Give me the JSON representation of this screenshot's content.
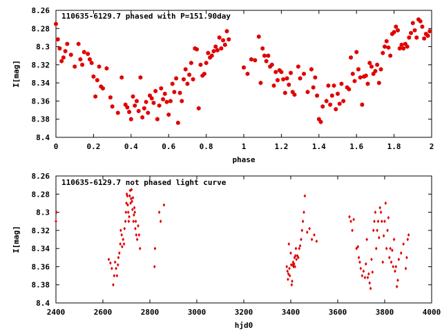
{
  "chart_data": [
    {
      "type": "scatter",
      "title": "110635-6129.7 phased with P=151.90day",
      "xlabel": "phase",
      "ylabel": "I[mag]",
      "xlim": [
        0,
        2
      ],
      "ylim": [
        8.4,
        8.26
      ],
      "y_inverted": true,
      "xticks": [
        0,
        0.2,
        0.4,
        0.6,
        0.8,
        1,
        1.2,
        1.4,
        1.6,
        1.8,
        2
      ],
      "xtick_labels": [
        "0",
        "0.2",
        "0.4",
        "0.6",
        "0.8",
        "1",
        "1.2",
        "1.4",
        "1.6",
        "1.8",
        "2"
      ],
      "yticks": [
        8.26,
        8.28,
        8.3,
        8.32,
        8.34,
        8.36,
        8.38,
        8.4
      ],
      "ytick_labels": [
        "8.26",
        "8.28",
        "8.3",
        "8.32",
        "8.34",
        "8.36",
        "8.38",
        "8.4"
      ],
      "grid": false,
      "marker": "filled-hexagon",
      "color": "#e00000",
      "points": [
        [
          0.0,
          8.275
        ],
        [
          0.01,
          8.292
        ],
        [
          0.02,
          8.302
        ],
        [
          0.03,
          8.316
        ],
        [
          0.04,
          8.312
        ],
        [
          0.05,
          8.305
        ],
        [
          0.06,
          8.297
        ],
        [
          0.08,
          8.309
        ],
        [
          0.1,
          8.322
        ],
        [
          0.12,
          8.297
        ],
        [
          0.13,
          8.314
        ],
        [
          0.14,
          8.32
        ],
        [
          0.15,
          8.306
        ],
        [
          0.17,
          8.308
        ],
        [
          0.18,
          8.314
        ],
        [
          0.19,
          8.318
        ],
        [
          0.2,
          8.333
        ],
        [
          0.21,
          8.355
        ],
        [
          0.22,
          8.337
        ],
        [
          0.23,
          8.322
        ],
        [
          0.24,
          8.344
        ],
        [
          0.25,
          8.346
        ],
        [
          0.27,
          8.324
        ],
        [
          0.29,
          8.356
        ],
        [
          0.3,
          8.366
        ],
        [
          0.33,
          8.373
        ],
        [
          0.35,
          8.334
        ],
        [
          0.37,
          8.364
        ],
        [
          0.38,
          8.367
        ],
        [
          0.39,
          8.372
        ],
        [
          0.4,
          8.38
        ],
        [
          0.41,
          8.355
        ],
        [
          0.42,
          8.365
        ],
        [
          0.43,
          8.36
        ],
        [
          0.44,
          8.371
        ],
        [
          0.45,
          8.334
        ],
        [
          0.46,
          8.378
        ],
        [
          0.47,
          8.368
        ],
        [
          0.48,
          8.361
        ],
        [
          0.49,
          8.373
        ],
        [
          0.5,
          8.354
        ],
        [
          0.51,
          8.357
        ],
        [
          0.52,
          8.362
        ],
        [
          0.53,
          8.349
        ],
        [
          0.54,
          8.38
        ],
        [
          0.55,
          8.365
        ],
        [
          0.56,
          8.346
        ],
        [
          0.57,
          8.358
        ],
        [
          0.58,
          8.352
        ],
        [
          0.59,
          8.361
        ],
        [
          0.6,
          8.375
        ],
        [
          0.61,
          8.36
        ],
        [
          0.62,
          8.341
        ],
        [
          0.63,
          8.35
        ],
        [
          0.64,
          8.335
        ],
        [
          0.65,
          8.384
        ],
        [
          0.66,
          8.351
        ],
        [
          0.67,
          8.36
        ],
        [
          0.68,
          8.336
        ],
        [
          0.69,
          8.325
        ],
        [
          0.7,
          8.341
        ],
        [
          0.71,
          8.331
        ],
        [
          0.72,
          8.318
        ],
        [
          0.73,
          8.336
        ],
        [
          0.74,
          8.302
        ],
        [
          0.75,
          8.303
        ],
        [
          0.76,
          8.368
        ],
        [
          0.77,
          8.32
        ],
        [
          0.78,
          8.332
        ],
        [
          0.79,
          8.33
        ],
        [
          0.8,
          8.318
        ],
        [
          0.81,
          8.307
        ],
        [
          0.82,
          8.312
        ],
        [
          0.83,
          8.31
        ],
        [
          0.84,
          8.305
        ],
        [
          0.85,
          8.3
        ],
        [
          0.86,
          8.304
        ],
        [
          0.87,
          8.29
        ],
        [
          0.88,
          8.302
        ],
        [
          0.89,
          8.293
        ],
        [
          0.9,
          8.298
        ],
        [
          0.91,
          8.283
        ],
        [
          0.92,
          8.292
        ],
        [
          1.0,
          8.323
        ],
        [
          1.02,
          8.33
        ],
        [
          1.04,
          8.314
        ],
        [
          1.06,
          8.315
        ],
        [
          1.08,
          8.289
        ],
        [
          1.09,
          8.34
        ],
        [
          1.1,
          8.302
        ],
        [
          1.11,
          8.31
        ],
        [
          1.12,
          8.316
        ],
        [
          1.13,
          8.31
        ],
        [
          1.14,
          8.322
        ],
        [
          1.15,
          8.32
        ],
        [
          1.16,
          8.343
        ],
        [
          1.17,
          8.328
        ],
        [
          1.18,
          8.337
        ],
        [
          1.19,
          8.326
        ],
        [
          1.2,
          8.328
        ],
        [
          1.21,
          8.336
        ],
        [
          1.22,
          8.351
        ],
        [
          1.23,
          8.335
        ],
        [
          1.24,
          8.342
        ],
        [
          1.25,
          8.329
        ],
        [
          1.26,
          8.35
        ],
        [
          1.27,
          8.353
        ],
        [
          1.29,
          8.322
        ],
        [
          1.3,
          8.335
        ],
        [
          1.32,
          8.33
        ],
        [
          1.34,
          8.35
        ],
        [
          1.36,
          8.325
        ],
        [
          1.37,
          8.345
        ],
        [
          1.38,
          8.334
        ],
        [
          1.39,
          8.354
        ],
        [
          1.4,
          8.38
        ],
        [
          1.41,
          8.383
        ],
        [
          1.42,
          8.366
        ],
        [
          1.44,
          8.36
        ],
        [
          1.45,
          8.343
        ],
        [
          1.46,
          8.364
        ],
        [
          1.47,
          8.354
        ],
        [
          1.48,
          8.343
        ],
        [
          1.49,
          8.369
        ],
        [
          1.5,
          8.352
        ],
        [
          1.51,
          8.363
        ],
        [
          1.52,
          8.341
        ],
        [
          1.53,
          8.36
        ],
        [
          1.55,
          8.345
        ],
        [
          1.56,
          8.347
        ],
        [
          1.57,
          8.312
        ],
        [
          1.58,
          8.33
        ],
        [
          1.59,
          8.338
        ],
        [
          1.6,
          8.306
        ],
        [
          1.61,
          8.325
        ],
        [
          1.62,
          8.334
        ],
        [
          1.63,
          8.364
        ],
        [
          1.64,
          8.333
        ],
        [
          1.65,
          8.332
        ],
        [
          1.66,
          8.341
        ],
        [
          1.67,
          8.318
        ],
        [
          1.68,
          8.322
        ],
        [
          1.69,
          8.33
        ],
        [
          1.7,
          8.327
        ],
        [
          1.71,
          8.32
        ],
        [
          1.72,
          8.34
        ],
        [
          1.73,
          8.325
        ],
        [
          1.74,
          8.307
        ],
        [
          1.75,
          8.3
        ],
        [
          1.76,
          8.294
        ],
        [
          1.77,
          8.301
        ],
        [
          1.78,
          8.31
        ],
        [
          1.79,
          8.286
        ],
        [
          1.8,
          8.284
        ],
        [
          1.81,
          8.278
        ],
        [
          1.82,
          8.282
        ],
        [
          1.83,
          8.302
        ],
        [
          1.84,
          8.298
        ],
        [
          1.85,
          8.302
        ],
        [
          1.86,
          8.297
        ],
        [
          1.87,
          8.3
        ],
        [
          1.88,
          8.29
        ],
        [
          1.89,
          8.285
        ],
        [
          1.9,
          8.274
        ],
        [
          1.91,
          8.282
        ],
        [
          1.92,
          8.29
        ],
        [
          1.93,
          8.27
        ],
        [
          1.94,
          8.272
        ],
        [
          1.95,
          8.278
        ],
        [
          1.96,
          8.291
        ],
        [
          1.97,
          8.286
        ],
        [
          1.98,
          8.288
        ],
        [
          1.99,
          8.283
        ]
      ]
    },
    {
      "type": "scatter",
      "title": "110635-6129.7 not phased light curve",
      "xlabel": "hjd0",
      "ylabel": "I[mag]",
      "xlim": [
        2400,
        4000
      ],
      "ylim": [
        8.4,
        8.26
      ],
      "y_inverted": true,
      "xticks": [
        2400,
        2600,
        2800,
        3000,
        3200,
        3400,
        3600,
        3800,
        4000
      ],
      "xtick_labels": [
        "2400",
        "2600",
        "2800",
        "3000",
        "3200",
        "3400",
        "3600",
        "3800",
        "4000"
      ],
      "yticks": [
        8.26,
        8.28,
        8.3,
        8.32,
        8.34,
        8.36,
        8.38,
        8.4
      ],
      "ytick_labels": [
        "8.26",
        "8.28",
        "8.3",
        "8.32",
        "8.34",
        "8.36",
        "8.38",
        "8.4"
      ],
      "grid": false,
      "marker": "filled-diamond",
      "color": "#e00000",
      "points": [
        [
          2400,
          8.31
        ],
        [
          2402,
          8.3
        ],
        [
          2625,
          8.352
        ],
        [
          2632,
          8.356
        ],
        [
          2638,
          8.362
        ],
        [
          2644,
          8.38
        ],
        [
          2648,
          8.37
        ],
        [
          2652,
          8.355
        ],
        [
          2656,
          8.362
        ],
        [
          2660,
          8.37
        ],
        [
          2664,
          8.358
        ],
        [
          2666,
          8.35
        ],
        [
          2670,
          8.345
        ],
        [
          2674,
          8.335
        ],
        [
          2676,
          8.32
        ],
        [
          2680,
          8.325
        ],
        [
          2682,
          8.338
        ],
        [
          2686,
          8.33
        ],
        [
          2690,
          8.335
        ],
        [
          2692,
          8.318
        ],
        [
          2696,
          8.31
        ],
        [
          2698,
          8.3
        ],
        [
          2700,
          8.29
        ],
        [
          2702,
          8.28
        ],
        [
          2704,
          8.282
        ],
        [
          2706,
          8.292
        ],
        [
          2708,
          8.3
        ],
        [
          2710,
          8.31
        ],
        [
          2712,
          8.305
        ],
        [
          2714,
          8.282
        ],
        [
          2716,
          8.276
        ],
        [
          2718,
          8.29
        ],
        [
          2720,
          8.285
        ],
        [
          2722,
          8.275
        ],
        [
          2724,
          8.288
        ],
        [
          2726,
          8.297
        ],
        [
          2728,
          8.284
        ],
        [
          2730,
          8.31
        ],
        [
          2732,
          8.303
        ],
        [
          2734,
          8.295
        ],
        [
          2736,
          8.3
        ],
        [
          2738,
          8.318
        ],
        [
          2740,
          8.31
        ],
        [
          2742,
          8.325
        ],
        [
          2746,
          8.33
        ],
        [
          2750,
          8.315
        ],
        [
          2754,
          8.325
        ],
        [
          2758,
          8.34
        ],
        [
          2820,
          8.36
        ],
        [
          2822,
          8.34
        ],
        [
          2840,
          8.3
        ],
        [
          2846,
          8.31
        ],
        [
          2860,
          8.292
        ],
        [
          3383,
          8.36
        ],
        [
          3386,
          8.365
        ],
        [
          3388,
          8.374
        ],
        [
          3390,
          8.368
        ],
        [
          3392,
          8.335
        ],
        [
          3394,
          8.362
        ],
        [
          3396,
          8.37
        ],
        [
          3400,
          8.345
        ],
        [
          3402,
          8.358
        ],
        [
          3404,
          8.38
        ],
        [
          3406,
          8.376
        ],
        [
          3408,
          8.358
        ],
        [
          3410,
          8.355
        ],
        [
          3412,
          8.36
        ],
        [
          3414,
          8.357
        ],
        [
          3416,
          8.35
        ],
        [
          3418,
          8.36
        ],
        [
          3420,
          8.348
        ],
        [
          3422,
          8.34
        ],
        [
          3424,
          8.352
        ],
        [
          3428,
          8.348
        ],
        [
          3432,
          8.35
        ],
        [
          3436,
          8.34
        ],
        [
          3440,
          8.337
        ],
        [
          3444,
          8.33
        ],
        [
          3448,
          8.32
        ],
        [
          3452,
          8.31
        ],
        [
          3456,
          8.3
        ],
        [
          3460,
          8.282
        ],
        [
          3470,
          8.322
        ],
        [
          3480,
          8.318
        ],
        [
          3490,
          8.33
        ],
        [
          3500,
          8.325
        ],
        [
          3510,
          8.332
        ],
        [
          3650,
          8.305
        ],
        [
          3656,
          8.31
        ],
        [
          3662,
          8.32
        ],
        [
          3668,
          8.308
        ],
        [
          3680,
          8.34
        ],
        [
          3686,
          8.338
        ],
        [
          3690,
          8.35
        ],
        [
          3694,
          8.355
        ],
        [
          3698,
          8.362
        ],
        [
          3704,
          8.37
        ],
        [
          3710,
          8.365
        ],
        [
          3716,
          8.372
        ],
        [
          3720,
          8.357
        ],
        [
          3724,
          8.33
        ],
        [
          3728,
          8.372
        ],
        [
          3732,
          8.368
        ],
        [
          3736,
          8.378
        ],
        [
          3740,
          8.384
        ],
        [
          3744,
          8.352
        ],
        [
          3748,
          8.366
        ],
        [
          3752,
          8.32
        ],
        [
          3756,
          8.31
        ],
        [
          3760,
          8.3
        ],
        [
          3764,
          8.34
        ],
        [
          3768,
          8.32
        ],
        [
          3772,
          8.31
        ],
        [
          3776,
          8.328
        ],
        [
          3780,
          8.295
        ],
        [
          3784,
          8.3
        ],
        [
          3788,
          8.31
        ],
        [
          3792,
          8.355
        ],
        [
          3796,
          8.326
        ],
        [
          3800,
          8.31
        ],
        [
          3804,
          8.29
        ],
        [
          3808,
          8.34
        ],
        [
          3812,
          8.32
        ],
        [
          3816,
          8.306
        ],
        [
          3820,
          8.35
        ],
        [
          3824,
          8.34
        ],
        [
          3828,
          8.355
        ],
        [
          3832,
          8.342
        ],
        [
          3836,
          8.36
        ],
        [
          3840,
          8.33
        ],
        [
          3844,
          8.365
        ],
        [
          3848,
          8.36
        ],
        [
          3852,
          8.382
        ],
        [
          3856,
          8.375
        ],
        [
          3860,
          8.352
        ],
        [
          3870,
          8.345
        ],
        [
          3880,
          8.335
        ],
        [
          3890,
          8.362
        ],
        [
          3894,
          8.35
        ],
        [
          3898,
          8.33
        ],
        [
          3902,
          8.325
        ]
      ]
    }
  ]
}
